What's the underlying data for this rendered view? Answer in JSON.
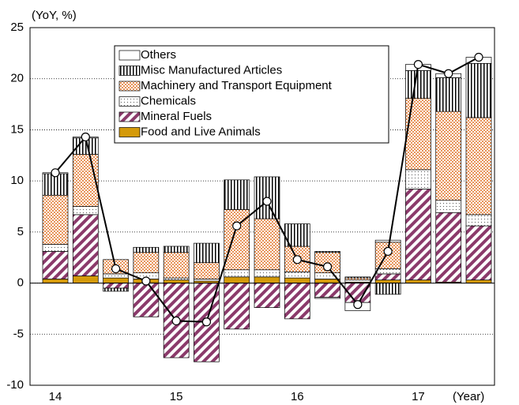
{
  "chart_data": {
    "type": "bar",
    "stacked": true,
    "y_label": "(YoY, %)",
    "x_label": "(Year)",
    "categories": [
      "14",
      null,
      null,
      null,
      "15",
      null,
      null,
      null,
      "16",
      null,
      null,
      null,
      "17",
      null,
      null
    ],
    "series": [
      {
        "name": "Food and Live Animals",
        "color": "#d49a0a",
        "pattern": "solid",
        "values": [
          0.4,
          0.7,
          0.5,
          0.4,
          0.3,
          0.2,
          0.6,
          0.6,
          0.5,
          0.4,
          0.1,
          0.3,
          0.3,
          0.1,
          0.3
        ]
      },
      {
        "name": "Mineral Fuels",
        "color": "#8b3a6b",
        "pattern": "diagonal",
        "values": [
          2.7,
          6.0,
          -0.5,
          -3.3,
          -7.3,
          -7.7,
          -4.5,
          -2.4,
          -3.5,
          -1.4,
          -1.9,
          0.6,
          8.9,
          6.8,
          5.3
        ]
      },
      {
        "name": "Chemicals",
        "color": "#555555",
        "pattern": "dots",
        "values": [
          0.7,
          0.8,
          0.4,
          0.6,
          0.2,
          0.2,
          0.7,
          0.7,
          0.6,
          0.6,
          0.2,
          0.5,
          1.9,
          1.2,
          1.1
        ]
      },
      {
        "name": "Machinery and Transport Equipment",
        "color": "#e8945a",
        "pattern": "checker",
        "values": [
          4.8,
          5.1,
          1.4,
          2.0,
          2.5,
          1.6,
          5.9,
          5.0,
          2.5,
          2.0,
          0.2,
          2.6,
          7.0,
          8.7,
          9.5
        ]
      },
      {
        "name": "Misc Manufactured Articles",
        "color": "#000000",
        "pattern": "vertical",
        "values": [
          2.1,
          1.6,
          -0.3,
          0.5,
          0.6,
          1.9,
          2.9,
          4.1,
          2.2,
          0.1,
          0.1,
          -1.1,
          2.7,
          3.3,
          5.3
        ]
      },
      {
        "name": "Others",
        "color": "#ffffff",
        "pattern": "none",
        "values": [
          0.1,
          0.1,
          0,
          0,
          0,
          0,
          0,
          0,
          0,
          -0.1,
          -0.8,
          0.2,
          0.6,
          0.4,
          0.6
        ]
      }
    ],
    "line": {
      "color": "#000000",
      "values": [
        10.8,
        14.3,
        1.4,
        0.2,
        -3.7,
        -3.8,
        5.6,
        8.0,
        2.3,
        1.6,
        -2.1,
        3.1,
        21.4,
        20.5,
        22.1
      ]
    },
    "ylim": [
      -10,
      25
    ],
    "yticks": [
      -10,
      -5,
      0,
      5,
      10,
      15,
      20,
      25
    ],
    "grid": true,
    "legend": "upper left"
  }
}
